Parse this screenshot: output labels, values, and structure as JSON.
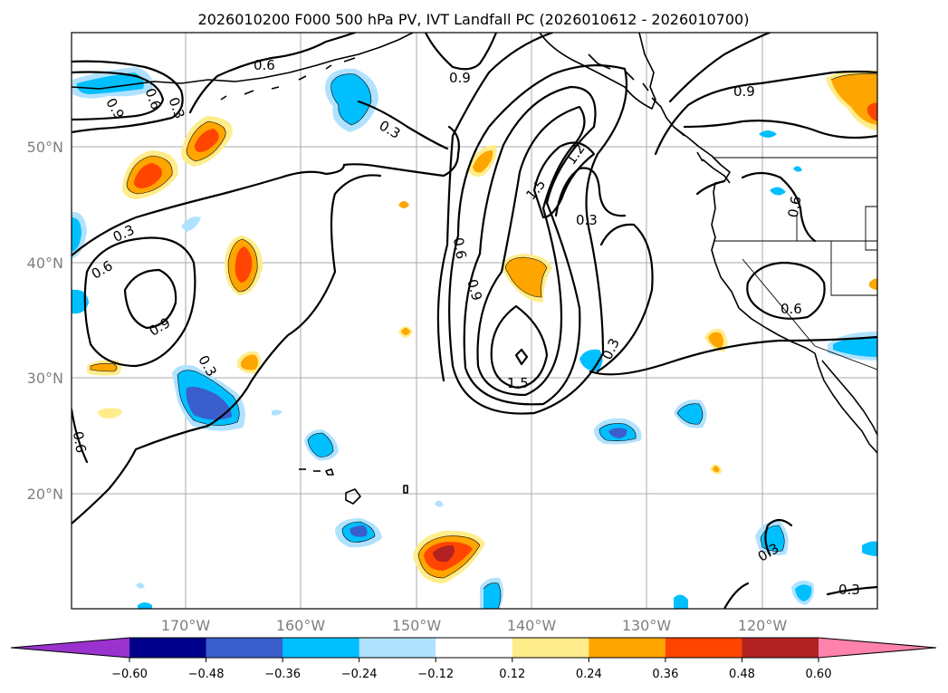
{
  "title": "2026010200 F000 500 hPa PV, IVT Landfall PC (2026010612 - 2026010700)",
  "map": {
    "lat_labels": [
      "50°N",
      "40°N",
      "30°N",
      "20°N"
    ],
    "lon_labels": [
      "170°W",
      "160°W",
      "150°W",
      "140°W",
      "130°W",
      "120°W"
    ],
    "contour_labels": [
      "0.6",
      "0.9",
      "0.9",
      "0.6",
      "0.3",
      "0.3",
      "1.5",
      "1.2",
      "0.3",
      "0.9",
      "0.3",
      "0.6",
      "0.9",
      "0.6",
      "0.9",
      "0.6",
      "0.3",
      "1.5",
      "0.3",
      "0.6",
      "0.6",
      "0.3",
      "0.3"
    ]
  },
  "colorbar": {
    "colors": [
      "#9a32cd",
      "#00008b",
      "#3a5fcd",
      "#00bfff",
      "#b0e2ff",
      "#ffffff",
      "#ffec8b",
      "#ffa500",
      "#ff4500",
      "#b22222",
      "#ff82ab"
    ],
    "tick_labels": [
      "−0.60",
      "−0.48",
      "−0.36",
      "−0.24",
      "−0.12",
      "0.12",
      "0.24",
      "0.36",
      "0.48",
      "0.60"
    ]
  }
}
